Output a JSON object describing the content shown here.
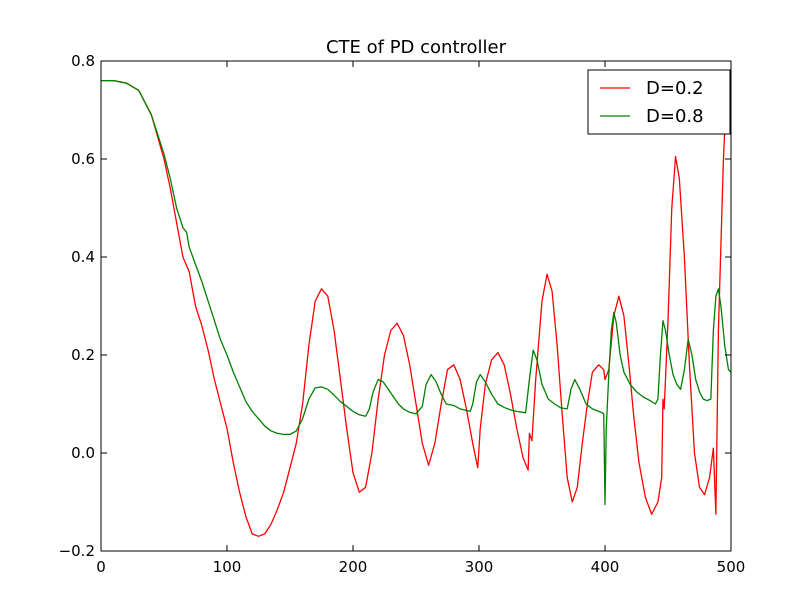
{
  "chart_data": {
    "type": "line",
    "title": "CTE of PD controller",
    "xlabel": "",
    "ylabel": "",
    "xlim": [
      0,
      500
    ],
    "ylim": [
      -0.2,
      0.8
    ],
    "x_ticks": [
      "0",
      "100",
      "200",
      "300",
      "400",
      "500"
    ],
    "y_ticks": [
      "−0.2",
      "0.0",
      "0.2",
      "0.4",
      "0.6",
      "0.8"
    ],
    "grid": false,
    "legend_position": "top-right",
    "series": [
      {
        "name": "D=0.2",
        "color": "#ff0000",
        "points": [
          [
            0,
            0.76
          ],
          [
            10,
            0.76
          ],
          [
            20,
            0.755
          ],
          [
            30,
            0.74
          ],
          [
            40,
            0.69
          ],
          [
            50,
            0.6
          ],
          [
            55,
            0.54
          ],
          [
            60,
            0.47
          ],
          [
            65,
            0.4
          ],
          [
            70,
            0.37
          ],
          [
            75,
            0.3
          ],
          [
            80,
            0.26
          ],
          [
            85,
            0.21
          ],
          [
            90,
            0.15
          ],
          [
            95,
            0.1
          ],
          [
            100,
            0.05
          ],
          [
            105,
            -0.02
          ],
          [
            110,
            -0.08
          ],
          [
            115,
            -0.13
          ],
          [
            120,
            -0.165
          ],
          [
            125,
            -0.17
          ],
          [
            130,
            -0.165
          ],
          [
            135,
            -0.145
          ],
          [
            140,
            -0.115
          ],
          [
            145,
            -0.08
          ],
          [
            150,
            -0.03
          ],
          [
            155,
            0.02
          ],
          [
            160,
            0.1
          ],
          [
            165,
            0.22
          ],
          [
            170,
            0.31
          ],
          [
            175,
            0.335
          ],
          [
            180,
            0.32
          ],
          [
            185,
            0.25
          ],
          [
            190,
            0.15
          ],
          [
            195,
            0.05
          ],
          [
            200,
            -0.04
          ],
          [
            205,
            -0.08
          ],
          [
            210,
            -0.07
          ],
          [
            215,
            0.0
          ],
          [
            220,
            0.11
          ],
          [
            225,
            0.2
          ],
          [
            230,
            0.25
          ],
          [
            235,
            0.265
          ],
          [
            240,
            0.24
          ],
          [
            245,
            0.18
          ],
          [
            250,
            0.1
          ],
          [
            255,
            0.02
          ],
          [
            260,
            -0.025
          ],
          [
            265,
            0.02
          ],
          [
            270,
            0.1
          ],
          [
            275,
            0.17
          ],
          [
            280,
            0.18
          ],
          [
            285,
            0.15
          ],
          [
            290,
            0.09
          ],
          [
            295,
            0.02
          ],
          [
            299,
            -0.03
          ],
          [
            301,
            0.05
          ],
          [
            305,
            0.14
          ],
          [
            310,
            0.19
          ],
          [
            315,
            0.205
          ],
          [
            320,
            0.18
          ],
          [
            325,
            0.12
          ],
          [
            330,
            0.05
          ],
          [
            335,
            -0.01
          ],
          [
            339,
            -0.035
          ],
          [
            340,
            0.04
          ],
          [
            342,
            0.025
          ],
          [
            345,
            0.15
          ],
          [
            350,
            0.31
          ],
          [
            354,
            0.365
          ],
          [
            358,
            0.33
          ],
          [
            362,
            0.22
          ],
          [
            366,
            0.08
          ],
          [
            370,
            -0.05
          ],
          [
            374,
            -0.1
          ],
          [
            378,
            -0.07
          ],
          [
            382,
            0.02
          ],
          [
            386,
            0.1
          ],
          [
            390,
            0.165
          ],
          [
            395,
            0.18
          ],
          [
            399,
            0.17
          ],
          [
            400,
            0.15
          ],
          [
            403,
            0.17
          ],
          [
            407,
            0.28
          ],
          [
            411,
            0.32
          ],
          [
            415,
            0.28
          ],
          [
            419,
            0.18
          ],
          [
            423,
            0.07
          ],
          [
            427,
            -0.02
          ],
          [
            432,
            -0.09
          ],
          [
            437,
            -0.125
          ],
          [
            442,
            -0.1
          ],
          [
            445,
            -0.05
          ],
          [
            446,
            0.11
          ],
          [
            447,
            0.09
          ],
          [
            450,
            0.27
          ],
          [
            453,
            0.5
          ],
          [
            456,
            0.605
          ],
          [
            459,
            0.56
          ],
          [
            463,
            0.4
          ],
          [
            467,
            0.18
          ],
          [
            471,
            0.0
          ],
          [
            475,
            -0.07
          ],
          [
            479,
            -0.085
          ],
          [
            483,
            -0.05
          ],
          [
            486,
            0.01
          ],
          [
            488,
            -0.125
          ],
          [
            490,
            0.25
          ],
          [
            494,
            0.6
          ],
          [
            497,
            0.77
          ],
          [
            500,
            0.78
          ]
        ]
      },
      {
        "name": "D=0.8",
        "color": "#008000",
        "points": [
          [
            0,
            0.76
          ],
          [
            10,
            0.76
          ],
          [
            20,
            0.755
          ],
          [
            30,
            0.74
          ],
          [
            40,
            0.69
          ],
          [
            50,
            0.61
          ],
          [
            55,
            0.56
          ],
          [
            60,
            0.5
          ],
          [
            65,
            0.46
          ],
          [
            68,
            0.45
          ],
          [
            70,
            0.42
          ],
          [
            75,
            0.385
          ],
          [
            80,
            0.35
          ],
          [
            85,
            0.31
          ],
          [
            90,
            0.27
          ],
          [
            95,
            0.23
          ],
          [
            100,
            0.2
          ],
          [
            105,
            0.165
          ],
          [
            110,
            0.135
          ],
          [
            115,
            0.105
          ],
          [
            120,
            0.085
          ],
          [
            125,
            0.07
          ],
          [
            130,
            0.055
          ],
          [
            135,
            0.045
          ],
          [
            140,
            0.04
          ],
          [
            145,
            0.038
          ],
          [
            150,
            0.038
          ],
          [
            155,
            0.045
          ],
          [
            160,
            0.07
          ],
          [
            165,
            0.11
          ],
          [
            170,
            0.133
          ],
          [
            175,
            0.135
          ],
          [
            180,
            0.13
          ],
          [
            185,
            0.118
          ],
          [
            190,
            0.105
          ],
          [
            195,
            0.095
          ],
          [
            200,
            0.085
          ],
          [
            205,
            0.078
          ],
          [
            210,
            0.075
          ],
          [
            213,
            0.09
          ],
          [
            216,
            0.125
          ],
          [
            220,
            0.15
          ],
          [
            224,
            0.145
          ],
          [
            228,
            0.13
          ],
          [
            232,
            0.115
          ],
          [
            236,
            0.1
          ],
          [
            240,
            0.09
          ],
          [
            245,
            0.083
          ],
          [
            250,
            0.08
          ],
          [
            255,
            0.095
          ],
          [
            258,
            0.14
          ],
          [
            262,
            0.16
          ],
          [
            266,
            0.145
          ],
          [
            270,
            0.12
          ],
          [
            274,
            0.1
          ],
          [
            280,
            0.097
          ],
          [
            285,
            0.09
          ],
          [
            293,
            0.085
          ],
          [
            295,
            0.1
          ],
          [
            298,
            0.145
          ],
          [
            301,
            0.16
          ],
          [
            305,
            0.145
          ],
          [
            310,
            0.12
          ],
          [
            315,
            0.1
          ],
          [
            320,
            0.093
          ],
          [
            325,
            0.088
          ],
          [
            330,
            0.085
          ],
          [
            337,
            0.082
          ],
          [
            340,
            0.15
          ],
          [
            343,
            0.21
          ],
          [
            346,
            0.19
          ],
          [
            350,
            0.14
          ],
          [
            355,
            0.11
          ],
          [
            360,
            0.1
          ],
          [
            365,
            0.092
          ],
          [
            370,
            0.09
          ],
          [
            373,
            0.13
          ],
          [
            376,
            0.15
          ],
          [
            380,
            0.13
          ],
          [
            385,
            0.1
          ],
          [
            390,
            0.09
          ],
          [
            395,
            0.085
          ],
          [
            398,
            0.082
          ],
          [
            399,
            0.08
          ],
          [
            400,
            -0.105
          ],
          [
            401,
            0.05
          ],
          [
            403,
            0.16
          ],
          [
            405,
            0.25
          ],
          [
            407,
            0.287
          ],
          [
            409,
            0.265
          ],
          [
            412,
            0.2
          ],
          [
            415,
            0.165
          ],
          [
            420,
            0.14
          ],
          [
            425,
            0.125
          ],
          [
            430,
            0.115
          ],
          [
            435,
            0.108
          ],
          [
            440,
            0.1
          ],
          [
            442,
            0.11
          ],
          [
            444,
            0.2
          ],
          [
            446,
            0.27
          ],
          [
            448,
            0.25
          ],
          [
            451,
            0.2
          ],
          [
            454,
            0.16
          ],
          [
            457,
            0.14
          ],
          [
            460,
            0.13
          ],
          [
            463,
            0.17
          ],
          [
            466,
            0.232
          ],
          [
            469,
            0.2
          ],
          [
            472,
            0.15
          ],
          [
            475,
            0.125
          ],
          [
            478,
            0.11
          ],
          [
            481,
            0.107
          ],
          [
            484,
            0.11
          ],
          [
            486,
            0.25
          ],
          [
            488,
            0.32
          ],
          [
            490,
            0.335
          ],
          [
            492,
            0.3
          ],
          [
            495,
            0.22
          ],
          [
            498,
            0.17
          ],
          [
            500,
            0.165
          ]
        ]
      }
    ]
  }
}
